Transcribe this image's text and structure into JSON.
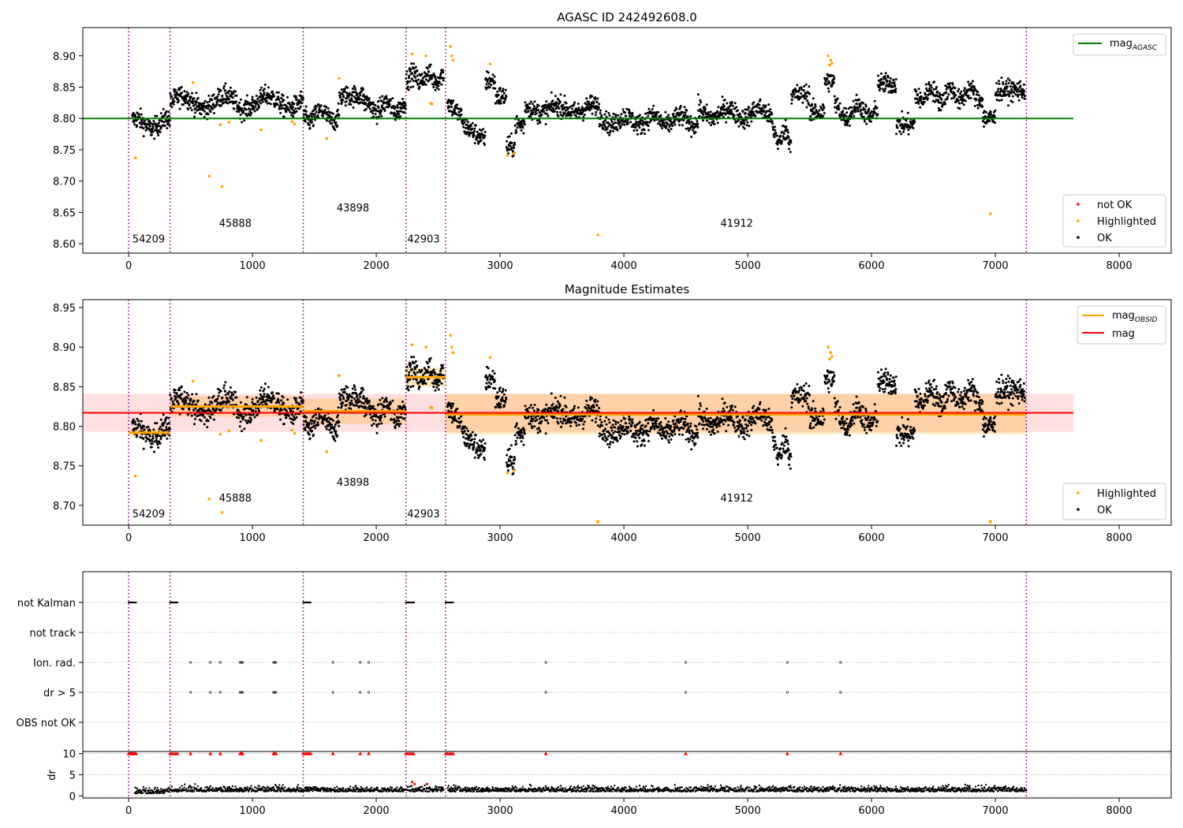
{
  "figure": {
    "panels": [
      "top",
      "middle",
      "bottom"
    ]
  },
  "chart_data": [
    {
      "type": "scatter",
      "title": "AGASC ID 242492608.0",
      "xlim": [
        -370,
        8420
      ],
      "ylim": [
        8.585,
        8.945
      ],
      "xticks": [
        0,
        1000,
        2000,
        3000,
        4000,
        5000,
        6000,
        7000,
        8000
      ],
      "xtick_labels": [
        "0",
        "1000",
        "2000",
        "3000",
        "4000",
        "5000",
        "6000",
        "7000",
        "8000"
      ],
      "yticks": [
        8.6,
        8.65,
        8.7,
        8.75,
        8.8,
        8.85,
        8.9
      ],
      "ytick_labels": [
        "8.60",
        "8.65",
        "8.70",
        "8.75",
        "8.80",
        "8.85",
        "8.90"
      ],
      "obsid_boundaries": [
        0,
        335,
        1410,
        2240,
        2560,
        7250
      ],
      "obsid_labels": [
        {
          "text": "54209",
          "x": 30,
          "y": 8.602
        },
        {
          "text": "45888",
          "x": 730,
          "y": 8.627
        },
        {
          "text": "43898",
          "x": 1680,
          "y": 8.652
        },
        {
          "text": "42903",
          "x": 2250,
          "y": 8.602
        },
        {
          "text": "41912",
          "x": 4780,
          "y": 8.627
        }
      ],
      "mag_agasc": {
        "y": 8.8,
        "x_range": [
          -370,
          7630
        ],
        "color": "#008000"
      },
      "series": [
        {
          "name": "not OK",
          "color": "#ff0000"
        },
        {
          "name": "Highlighted",
          "color": "#ffa500"
        },
        {
          "name": "OK",
          "color": "#000000"
        }
      ],
      "highlighted_points": [
        [
          55,
          8.737
        ],
        [
          520,
          8.857
        ],
        [
          650,
          8.708
        ],
        [
          740,
          8.79
        ],
        [
          755,
          8.691
        ],
        [
          810,
          8.794
        ],
        [
          1070,
          8.782
        ],
        [
          1320,
          8.795
        ],
        [
          1340,
          8.791
        ],
        [
          1600,
          8.768
        ],
        [
          1700,
          8.864
        ],
        [
          2290,
          8.903
        ],
        [
          2400,
          8.9
        ],
        [
          2440,
          8.824
        ],
        [
          2450,
          8.823
        ],
        [
          2600,
          8.915
        ],
        [
          2610,
          8.9
        ],
        [
          2620,
          8.893
        ],
        [
          2920,
          8.887
        ],
        [
          3060,
          8.741
        ],
        [
          3110,
          8.744
        ],
        [
          3790,
          8.614
        ],
        [
          5650,
          8.9
        ],
        [
          5660,
          8.885
        ],
        [
          5670,
          8.893
        ],
        [
          5680,
          8.888
        ],
        [
          6960,
          8.648
        ]
      ],
      "legend_upper": {
        "entries": [
          "mag_AGASC"
        ],
        "placement": "upper right"
      },
      "legend_lower": {
        "entries": [
          "not OK",
          "Highlighted",
          "OK"
        ],
        "placement": "lower right"
      }
    },
    {
      "type": "scatter",
      "title": "Magnitude Estimates",
      "xlim": [
        -370,
        8420
      ],
      "ylim": [
        8.675,
        8.96
      ],
      "xticks": [
        0,
        1000,
        2000,
        3000,
        4000,
        5000,
        6000,
        7000,
        8000
      ],
      "xtick_labels": [
        "0",
        "1000",
        "2000",
        "3000",
        "4000",
        "5000",
        "6000",
        "7000",
        "8000"
      ],
      "yticks": [
        8.7,
        8.75,
        8.8,
        8.85,
        8.9,
        8.95
      ],
      "ytick_labels": [
        "8.70",
        "8.75",
        "8.80",
        "8.85",
        "8.90",
        "8.95"
      ],
      "obsid_boundaries": [
        0,
        335,
        1410,
        2240,
        2560,
        7250
      ],
      "obsid_labels": [
        {
          "text": "54209",
          "x": 30,
          "y": 8.685
        },
        {
          "text": "45888",
          "x": 730,
          "y": 8.705
        },
        {
          "text": "43898",
          "x": 1680,
          "y": 8.725
        },
        {
          "text": "42903",
          "x": 2250,
          "y": 8.685
        },
        {
          "text": "41912",
          "x": 4780,
          "y": 8.705
        }
      ],
      "mag": {
        "y": 8.817,
        "band": [
          8.793,
          8.841
        ],
        "x_range": [
          -370,
          7630
        ],
        "color": "#ff0000"
      },
      "mag_obsid": [
        {
          "x": [
            0,
            335
          ],
          "y": 8.792,
          "band": [
            8.787,
            8.797
          ]
        },
        {
          "x": [
            335,
            1410
          ],
          "y": 8.825,
          "band": [
            8.812,
            8.838
          ]
        },
        {
          "x": [
            1410,
            2240
          ],
          "y": 8.819,
          "band": [
            8.803,
            8.835
          ]
        },
        {
          "x": [
            2240,
            2560
          ],
          "y": 8.862,
          "band": [
            8.85,
            8.874
          ]
        },
        {
          "x": [
            2560,
            7250
          ],
          "y": 8.815,
          "band": [
            8.79,
            8.841
          ]
        }
      ],
      "series": [
        {
          "name": "Highlighted",
          "color": "#ffa500"
        },
        {
          "name": "OK",
          "color": "#000000"
        }
      ],
      "highlighted_points": [
        [
          55,
          8.737
        ],
        [
          520,
          8.857
        ],
        [
          650,
          8.708
        ],
        [
          740,
          8.79
        ],
        [
          755,
          8.691
        ],
        [
          810,
          8.794
        ],
        [
          1070,
          8.782
        ],
        [
          1320,
          8.795
        ],
        [
          1340,
          8.791
        ],
        [
          1600,
          8.768
        ],
        [
          1700,
          8.864
        ],
        [
          2290,
          8.903
        ],
        [
          2400,
          8.9
        ],
        [
          2440,
          8.824
        ],
        [
          2450,
          8.823
        ],
        [
          2600,
          8.915
        ],
        [
          2610,
          8.9
        ],
        [
          2620,
          8.893
        ],
        [
          2920,
          8.887
        ],
        [
          3060,
          8.741
        ],
        [
          3110,
          8.744
        ],
        [
          5650,
          8.9
        ],
        [
          5660,
          8.885
        ],
        [
          5670,
          8.893
        ],
        [
          5680,
          8.888
        ]
      ],
      "clipped_points": [
        [
          3790,
          8.677
        ],
        [
          6960,
          8.677
        ]
      ],
      "legend_upper": {
        "entries": [
          "mag_OBSID",
          "mag"
        ],
        "placement": "upper right"
      },
      "legend_lower": {
        "entries": [
          "Highlighted",
          "OK"
        ],
        "placement": "lower right"
      }
    },
    {
      "type": "scatter",
      "title": "",
      "xlim": [
        -370,
        8420
      ],
      "xticks": [
        0,
        1000,
        2000,
        3000,
        4000,
        5000,
        6000,
        7000,
        8000
      ],
      "xtick_labels": [
        "0",
        "1000",
        "2000",
        "3000",
        "4000",
        "5000",
        "6000",
        "7000",
        "8000"
      ],
      "flag_rows": [
        "not Kalman",
        "not track",
        "Ion. rad.",
        "dr > 5",
        "OBS not OK"
      ],
      "obsid_boundaries": [
        0,
        335,
        1410,
        2240,
        2560,
        7250
      ],
      "not_kalman_ranges": [
        [
          0,
          60
        ],
        [
          335,
          400
        ],
        [
          1410,
          1470
        ],
        [
          2240,
          2310
        ],
        [
          2560,
          2625
        ]
      ],
      "ion_rad_x": [
        500,
        660,
        740,
        900,
        910,
        920,
        1170,
        1180,
        1190,
        1650,
        1870,
        1940,
        3370,
        4500,
        5320,
        5750
      ],
      "dr_gt5_x": [
        500,
        660,
        740,
        900,
        910,
        920,
        1170,
        1180,
        1190,
        1650,
        1870,
        1940,
        3370,
        4500,
        5320,
        5750
      ],
      "dr_panel": {
        "ylabel": "dr",
        "ylim": [
          -0.5,
          10.5
        ],
        "yticks": [
          0,
          5,
          10
        ],
        "ytick_labels": [
          "0",
          "5",
          "10"
        ],
        "clipped_at": 10,
        "clipped_x": [
          0,
          10,
          20,
          30,
          40,
          50,
          60,
          335,
          350,
          365,
          380,
          395,
          500,
          660,
          740,
          900,
          910,
          920,
          1170,
          1180,
          1190,
          1410,
          1425,
          1440,
          1455,
          1470,
          1650,
          1870,
          1940,
          2240,
          2255,
          2270,
          2285,
          2300,
          2560,
          2575,
          2590,
          2605,
          2620,
          3370,
          4500,
          5320,
          5750
        ],
        "outliers": [
          [
            2290,
            3.3
          ],
          [
            2310,
            2.8
          ],
          [
            2410,
            2.8
          ]
        ]
      }
    }
  ]
}
